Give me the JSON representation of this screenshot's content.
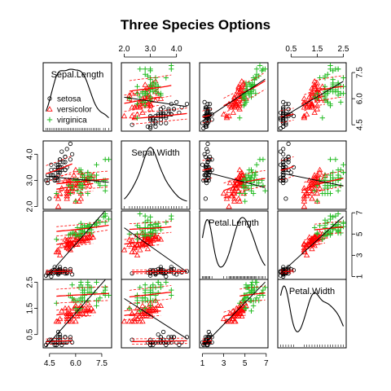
{
  "chart_data": {
    "type": "scatter",
    "title": "Three Species Options",
    "variables": [
      "Sepal.Length",
      "Sepal.Width",
      "Petal.Length",
      "Petal.Width"
    ],
    "ranges": [
      [
        4.3,
        7.9
      ],
      [
        2.0,
        4.4
      ],
      [
        1.0,
        6.9
      ],
      [
        0.1,
        2.5
      ]
    ],
    "ticks": {
      "Sepal.Length": [
        4.5,
        6.0,
        7.5
      ],
      "Sepal.Width": [
        2.0,
        3.0,
        4.0
      ],
      "Petal.Length": [
        1,
        3,
        5,
        7
      ],
      "Petal.Width": [
        0.5,
        1.5,
        2.5
      ]
    },
    "tick_labels": {
      "Sepal.Length": [
        "4.5",
        "6.0",
        "7.5"
      ],
      "Sepal.Width": [
        "2.0",
        "3.0",
        "4.0"
      ],
      "Petal.Length": [
        "1",
        "3",
        "5",
        "7"
      ],
      "Petal.Width": [
        "0.5",
        "1.5",
        "2.5"
      ]
    },
    "legend": {
      "position": "top-left",
      "entries": [
        {
          "name": "setosa",
          "symbol": "circle",
          "color": "#000000"
        },
        {
          "name": "versicolor",
          "symbol": "triangle",
          "color": "#ff0000"
        },
        {
          "name": "virginica",
          "symbol": "plus",
          "color": "#22bb22"
        }
      ]
    },
    "series": [
      {
        "name": "setosa",
        "color": "#000000",
        "points": [
          [
            5.1,
            3.5,
            1.4,
            0.2
          ],
          [
            4.9,
            3.0,
            1.4,
            0.2
          ],
          [
            4.7,
            3.2,
            1.3,
            0.2
          ],
          [
            4.6,
            3.1,
            1.5,
            0.2
          ],
          [
            5.0,
            3.6,
            1.4,
            0.2
          ],
          [
            5.4,
            3.9,
            1.7,
            0.4
          ],
          [
            4.6,
            3.4,
            1.4,
            0.3
          ],
          [
            5.0,
            3.4,
            1.5,
            0.2
          ],
          [
            4.4,
            2.9,
            1.4,
            0.2
          ],
          [
            4.9,
            3.1,
            1.5,
            0.1
          ],
          [
            5.4,
            3.7,
            1.5,
            0.2
          ],
          [
            4.8,
            3.4,
            1.6,
            0.2
          ],
          [
            4.8,
            3.0,
            1.4,
            0.1
          ],
          [
            4.3,
            3.0,
            1.1,
            0.1
          ],
          [
            5.8,
            4.0,
            1.2,
            0.2
          ],
          [
            5.7,
            4.4,
            1.5,
            0.4
          ],
          [
            5.4,
            3.9,
            1.3,
            0.4
          ],
          [
            5.1,
            3.5,
            1.4,
            0.3
          ],
          [
            5.7,
            3.8,
            1.7,
            0.3
          ],
          [
            5.1,
            3.8,
            1.5,
            0.3
          ],
          [
            5.4,
            3.4,
            1.7,
            0.2
          ],
          [
            5.1,
            3.7,
            1.5,
            0.4
          ],
          [
            4.6,
            3.6,
            1.0,
            0.2
          ],
          [
            5.1,
            3.3,
            1.7,
            0.5
          ],
          [
            4.8,
            3.4,
            1.9,
            0.2
          ],
          [
            5.0,
            3.0,
            1.6,
            0.2
          ],
          [
            5.0,
            3.4,
            1.6,
            0.4
          ],
          [
            5.2,
            3.5,
            1.5,
            0.2
          ],
          [
            5.2,
            3.4,
            1.4,
            0.2
          ],
          [
            4.7,
            3.2,
            1.6,
            0.2
          ],
          [
            4.8,
            3.1,
            1.6,
            0.2
          ],
          [
            5.4,
            3.4,
            1.5,
            0.4
          ],
          [
            5.2,
            4.1,
            1.5,
            0.1
          ],
          [
            5.5,
            4.2,
            1.4,
            0.2
          ],
          [
            4.9,
            3.1,
            1.5,
            0.2
          ],
          [
            5.0,
            3.2,
            1.2,
            0.2
          ],
          [
            5.5,
            3.5,
            1.3,
            0.2
          ],
          [
            4.9,
            3.6,
            1.4,
            0.1
          ],
          [
            4.4,
            3.0,
            1.3,
            0.2
          ],
          [
            5.1,
            3.4,
            1.5,
            0.2
          ],
          [
            5.0,
            3.5,
            1.3,
            0.3
          ],
          [
            4.5,
            2.3,
            1.3,
            0.3
          ],
          [
            4.4,
            3.2,
            1.3,
            0.2
          ],
          [
            5.0,
            3.5,
            1.6,
            0.6
          ],
          [
            5.1,
            3.8,
            1.9,
            0.4
          ],
          [
            4.8,
            3.0,
            1.4,
            0.3
          ],
          [
            5.1,
            3.8,
            1.6,
            0.2
          ],
          [
            4.6,
            3.2,
            1.4,
            0.2
          ],
          [
            5.3,
            3.7,
            1.5,
            0.2
          ],
          [
            5.0,
            3.3,
            1.4,
            0.2
          ]
        ]
      },
      {
        "name": "versicolor",
        "color": "#ff0000",
        "points": [
          [
            7.0,
            3.2,
            4.7,
            1.4
          ],
          [
            6.4,
            3.2,
            4.5,
            1.5
          ],
          [
            6.9,
            3.1,
            4.9,
            1.5
          ],
          [
            5.5,
            2.3,
            4.0,
            1.3
          ],
          [
            6.5,
            2.8,
            4.6,
            1.5
          ],
          [
            5.7,
            2.8,
            4.5,
            1.3
          ],
          [
            6.3,
            3.3,
            4.7,
            1.6
          ],
          [
            4.9,
            2.4,
            3.3,
            1.0
          ],
          [
            6.6,
            2.9,
            4.6,
            1.3
          ],
          [
            5.2,
            2.7,
            3.9,
            1.4
          ],
          [
            5.0,
            2.0,
            3.5,
            1.0
          ],
          [
            5.9,
            3.0,
            4.2,
            1.5
          ],
          [
            6.0,
            2.2,
            4.0,
            1.0
          ],
          [
            6.1,
            2.9,
            4.7,
            1.4
          ],
          [
            5.6,
            2.9,
            3.6,
            1.3
          ],
          [
            6.7,
            3.1,
            4.4,
            1.4
          ],
          [
            5.6,
            3.0,
            4.5,
            1.5
          ],
          [
            5.8,
            2.7,
            4.1,
            1.0
          ],
          [
            6.2,
            2.2,
            4.5,
            1.5
          ],
          [
            5.6,
            2.5,
            3.9,
            1.1
          ],
          [
            5.9,
            3.2,
            4.8,
            1.8
          ],
          [
            6.1,
            2.8,
            4.0,
            1.3
          ],
          [
            6.3,
            2.5,
            4.9,
            1.5
          ],
          [
            6.1,
            2.8,
            4.7,
            1.2
          ],
          [
            6.4,
            2.9,
            4.3,
            1.3
          ],
          [
            6.6,
            3.0,
            4.4,
            1.4
          ],
          [
            6.8,
            2.8,
            4.8,
            1.4
          ],
          [
            6.7,
            3.0,
            5.0,
            1.7
          ],
          [
            6.0,
            2.9,
            4.5,
            1.5
          ],
          [
            5.7,
            2.6,
            3.5,
            1.0
          ],
          [
            5.5,
            2.4,
            3.8,
            1.1
          ],
          [
            5.5,
            2.4,
            3.7,
            1.0
          ],
          [
            5.8,
            2.7,
            3.9,
            1.2
          ],
          [
            6.0,
            2.7,
            5.1,
            1.6
          ],
          [
            5.4,
            3.0,
            4.5,
            1.5
          ],
          [
            6.0,
            3.4,
            4.5,
            1.6
          ],
          [
            6.7,
            3.1,
            4.7,
            1.5
          ],
          [
            6.3,
            2.3,
            4.4,
            1.3
          ],
          [
            5.6,
            3.0,
            4.1,
            1.3
          ],
          [
            5.5,
            2.5,
            4.0,
            1.3
          ],
          [
            5.5,
            2.6,
            4.4,
            1.2
          ],
          [
            6.1,
            3.0,
            4.6,
            1.4
          ],
          [
            5.8,
            2.6,
            4.0,
            1.2
          ],
          [
            5.0,
            2.3,
            3.3,
            1.0
          ],
          [
            5.6,
            2.7,
            4.2,
            1.3
          ],
          [
            5.7,
            3.0,
            4.2,
            1.2
          ],
          [
            5.7,
            2.9,
            4.2,
            1.3
          ],
          [
            6.2,
            2.9,
            4.3,
            1.3
          ],
          [
            5.1,
            2.5,
            3.0,
            1.1
          ],
          [
            5.7,
            2.8,
            4.1,
            1.3
          ]
        ]
      },
      {
        "name": "virginica",
        "color": "#22bb22",
        "points": [
          [
            6.3,
            3.3,
            6.0,
            2.5
          ],
          [
            5.8,
            2.7,
            5.1,
            1.9
          ],
          [
            7.1,
            3.0,
            5.9,
            2.1
          ],
          [
            6.3,
            2.9,
            5.6,
            1.8
          ],
          [
            6.5,
            3.0,
            5.8,
            2.2
          ],
          [
            7.6,
            3.0,
            6.6,
            2.1
          ],
          [
            4.9,
            2.5,
            4.5,
            1.7
          ],
          [
            7.3,
            2.9,
            6.3,
            1.8
          ],
          [
            6.7,
            2.5,
            5.8,
            1.8
          ],
          [
            7.2,
            3.6,
            6.1,
            2.5
          ],
          [
            6.5,
            3.2,
            5.1,
            2.0
          ],
          [
            6.4,
            2.7,
            5.3,
            1.9
          ],
          [
            6.8,
            3.0,
            5.5,
            2.1
          ],
          [
            5.7,
            2.5,
            5.0,
            2.0
          ],
          [
            5.8,
            2.8,
            5.1,
            2.4
          ],
          [
            6.4,
            3.2,
            5.3,
            2.3
          ],
          [
            6.5,
            3.0,
            5.5,
            1.8
          ],
          [
            7.7,
            3.8,
            6.7,
            2.2
          ],
          [
            7.7,
            2.6,
            6.9,
            2.3
          ],
          [
            6.0,
            2.2,
            5.0,
            1.5
          ],
          [
            6.9,
            3.2,
            5.7,
            2.3
          ],
          [
            5.6,
            2.8,
            4.9,
            2.0
          ],
          [
            7.7,
            2.8,
            6.7,
            2.0
          ],
          [
            6.3,
            2.7,
            4.9,
            1.8
          ],
          [
            6.7,
            3.3,
            5.7,
            2.1
          ],
          [
            7.2,
            3.2,
            6.0,
            1.8
          ],
          [
            6.2,
            2.8,
            4.8,
            1.8
          ],
          [
            6.1,
            3.0,
            4.9,
            1.8
          ],
          [
            6.4,
            2.8,
            5.6,
            2.1
          ],
          [
            7.2,
            3.0,
            5.8,
            1.6
          ],
          [
            7.4,
            2.8,
            6.1,
            1.9
          ],
          [
            7.9,
            3.8,
            6.4,
            2.0
          ],
          [
            6.4,
            2.8,
            5.6,
            2.2
          ],
          [
            6.3,
            2.8,
            5.1,
            1.5
          ],
          [
            6.1,
            2.6,
            5.6,
            1.4
          ],
          [
            7.7,
            3.0,
            6.1,
            2.3
          ],
          [
            6.3,
            3.4,
            5.6,
            2.4
          ],
          [
            6.4,
            3.1,
            5.5,
            1.8
          ],
          [
            6.0,
            3.0,
            4.8,
            1.8
          ],
          [
            6.9,
            3.1,
            5.4,
            2.1
          ],
          [
            6.7,
            3.1,
            5.6,
            2.4
          ],
          [
            6.9,
            3.1,
            5.1,
            2.3
          ],
          [
            5.8,
            2.7,
            5.1,
            1.9
          ],
          [
            6.8,
            3.2,
            5.9,
            2.3
          ],
          [
            6.7,
            3.3,
            5.7,
            2.5
          ],
          [
            6.7,
            3.0,
            5.2,
            2.3
          ],
          [
            6.3,
            2.5,
            5.0,
            1.9
          ],
          [
            6.5,
            3.0,
            5.2,
            2.0
          ],
          [
            6.2,
            3.4,
            5.4,
            2.3
          ],
          [
            5.9,
            3.0,
            5.1,
            1.8
          ]
        ]
      }
    ]
  }
}
